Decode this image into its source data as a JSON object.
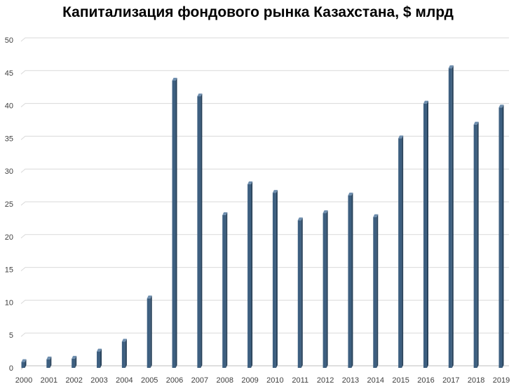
{
  "chart_data": {
    "type": "bar",
    "title": "Капитализация фондового рынка Казахстана, $ млрд",
    "xlabel": "",
    "ylabel": "",
    "categories": [
      "2000",
      "2001",
      "2002",
      "2003",
      "2004",
      "2005",
      "2006",
      "2007",
      "2008",
      "2009",
      "2010",
      "2011",
      "2012",
      "2013",
      "2014",
      "2015",
      "2016",
      "2017",
      "2018",
      "2019"
    ],
    "values": [
      0.9,
      1.3,
      1.4,
      2.5,
      4.0,
      10.6,
      43.8,
      41.4,
      23.3,
      28.0,
      26.7,
      22.5,
      23.6,
      26.3,
      23.0,
      35.0,
      40.3,
      45.7,
      37.1,
      39.7
    ],
    "ylim": [
      0,
      50
    ],
    "yticks": [
      "0",
      "5",
      "10",
      "15",
      "20",
      "25",
      "30",
      "35",
      "40",
      "45",
      "50"
    ],
    "grid": true,
    "legend": "none",
    "colors": {
      "bar_front": "#3d5f80",
      "bar_side": "#27415a",
      "bar_top": "#6f8faf",
      "grid": "#d9d9d9",
      "floor": "#bfbfbf",
      "tick_text": "#404040"
    }
  }
}
